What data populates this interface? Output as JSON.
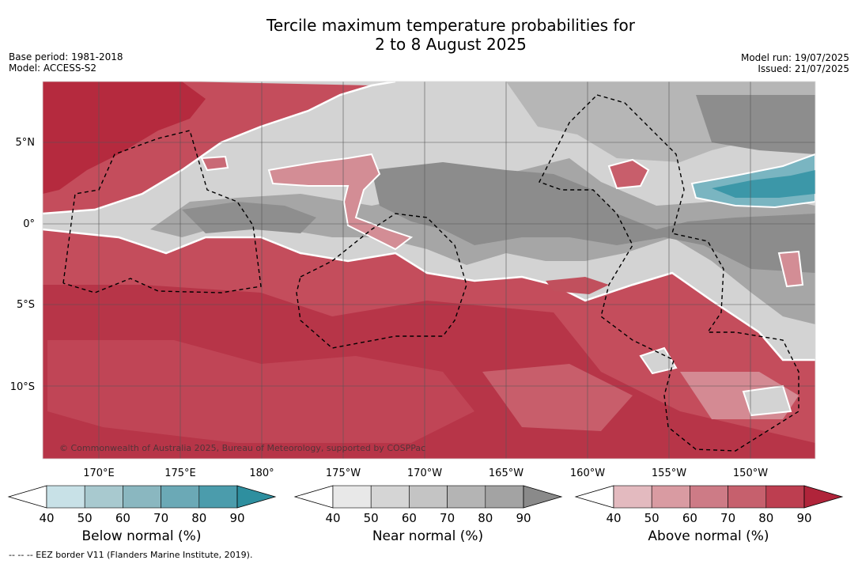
{
  "header": {
    "title_line1": "Tercile maximum temperature probabilities for",
    "title_line2": "2 to 8 August 2025",
    "base_period": "Base period: 1981-2018",
    "model": "Model: ACCESS-S2",
    "model_run": "Model run: 19/07/2025",
    "issued": "Issued: 21/07/2025"
  },
  "map": {
    "lat_labels": [
      "5°N",
      "0°",
      "5°S",
      "10°S"
    ],
    "lon_labels": [
      "170°E",
      "175°E",
      "180°",
      "175°W",
      "170°W",
      "165°W",
      "160°W",
      "155°W",
      "150°W"
    ],
    "copyright": "© Commonwealth of Australia 2025, Bureau of Meteorology, supported by COSPPac",
    "colors": {
      "above": [
        "#f2dde0",
        "#dfb4b9",
        "#d38d95",
        "#c96a76",
        "#c1505d",
        "#b83447",
        "#a91e34"
      ],
      "near": [
        "#e6e6e6",
        "#d2d2d2",
        "#c0c0c0",
        "#a9a9a9",
        "#8c8c8c"
      ],
      "below": [
        "#c8e0e6",
        "#9fc7d0",
        "#7ab5c1",
        "#5aa6b4",
        "#3c97a8"
      ]
    }
  },
  "colorbars": [
    {
      "name": "below",
      "title": "Below normal (%)",
      "ticks": [
        "40",
        "50",
        "60",
        "70",
        "80",
        "90"
      ],
      "colors": [
        "#c8e1e7",
        "#a8c9cf",
        "#8ab7c0",
        "#6ba9b6",
        "#4b9cac",
        "#2e8f9f"
      ]
    },
    {
      "name": "near",
      "title": "Near normal (%)",
      "ticks": [
        "40",
        "50",
        "60",
        "70",
        "80",
        "90"
      ],
      "colors": [
        "#e8e8e8",
        "#d5d5d5",
        "#c4c4c4",
        "#b4b4b4",
        "#a3a3a3",
        "#8a8a8a"
      ]
    },
    {
      "name": "above",
      "title": "Above normal (%)",
      "ticks": [
        "40",
        "50",
        "60",
        "70",
        "80",
        "90"
      ],
      "colors": [
        "#e3babf",
        "#d99ba2",
        "#cd7b86",
        "#c6606d",
        "#bd3e50",
        "#b0243a"
      ]
    }
  ],
  "footnote": "--  --  -- EEZ border V11 (Flanders Marine Institute, 2019)."
}
